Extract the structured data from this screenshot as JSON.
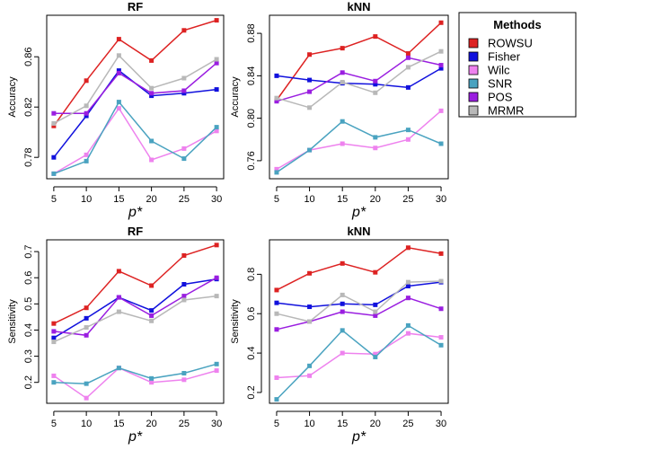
{
  "chart_data": [
    {
      "type": "line",
      "title": "RF",
      "xlabel": "p*",
      "ylabel": "Accuracy",
      "x": [
        5,
        10,
        15,
        20,
        25,
        30
      ],
      "ylim": [
        0.763,
        0.893
      ],
      "yticks": [
        0.78,
        0.82,
        0.86
      ],
      "series": [
        {
          "name": "ROWSU",
          "values": [
            0.805,
            0.841,
            0.874,
            0.857,
            0.881,
            0.889
          ]
        },
        {
          "name": "Fisher",
          "values": [
            0.78,
            0.813,
            0.849,
            0.829,
            0.831,
            0.834
          ]
        },
        {
          "name": "Wilc",
          "values": [
            0.767,
            0.782,
            0.819,
            0.778,
            0.787,
            0.801
          ]
        },
        {
          "name": "SNR",
          "values": [
            0.767,
            0.777,
            0.824,
            0.793,
            0.779,
            0.804
          ]
        },
        {
          "name": "POS",
          "values": [
            0.815,
            0.815,
            0.847,
            0.831,
            0.833,
            0.855
          ]
        },
        {
          "name": "MRMR",
          "values": [
            0.807,
            0.821,
            0.861,
            0.835,
            0.843,
            0.858
          ]
        }
      ]
    },
    {
      "type": "line",
      "title": "kNN",
      "xlabel": "p*",
      "ylabel": "Accuracy",
      "x": [
        5,
        10,
        15,
        20,
        25,
        30
      ],
      "ylim": [
        0.743,
        0.897
      ],
      "yticks": [
        0.76,
        0.8,
        0.84,
        0.88
      ],
      "series": [
        {
          "name": "ROWSU",
          "values": [
            0.817,
            0.86,
            0.866,
            0.877,
            0.861,
            0.89
          ]
        },
        {
          "name": "Fisher",
          "values": [
            0.84,
            0.836,
            0.833,
            0.832,
            0.829,
            0.847
          ]
        },
        {
          "name": "Wilc",
          "values": [
            0.752,
            0.77,
            0.776,
            0.772,
            0.78,
            0.807
          ]
        },
        {
          "name": "SNR",
          "values": [
            0.749,
            0.77,
            0.797,
            0.782,
            0.789,
            0.776
          ]
        },
        {
          "name": "POS",
          "values": [
            0.816,
            0.825,
            0.843,
            0.835,
            0.857,
            0.85
          ]
        },
        {
          "name": "MRMR",
          "values": [
            0.819,
            0.81,
            0.834,
            0.824,
            0.848,
            0.863
          ]
        }
      ]
    },
    {
      "type": "line",
      "title": "RF",
      "xlabel": "p*",
      "ylabel": "Sensitivity",
      "x": [
        5,
        10,
        15,
        20,
        25,
        30
      ],
      "ylim": [
        0.12,
        0.745
      ],
      "yticks": [
        0.2,
        0.3,
        0.4,
        0.5,
        0.6,
        0.7
      ],
      "series": [
        {
          "name": "ROWSU",
          "values": [
            0.425,
            0.485,
            0.625,
            0.57,
            0.685,
            0.725
          ]
        },
        {
          "name": "Fisher",
          "values": [
            0.37,
            0.445,
            0.525,
            0.475,
            0.575,
            0.595
          ]
        },
        {
          "name": "Wilc",
          "values": [
            0.225,
            0.14,
            0.255,
            0.2,
            0.21,
            0.245
          ]
        },
        {
          "name": "SNR",
          "values": [
            0.2,
            0.195,
            0.255,
            0.215,
            0.235,
            0.27
          ]
        },
        {
          "name": "POS",
          "values": [
            0.395,
            0.38,
            0.525,
            0.455,
            0.53,
            0.6
          ]
        },
        {
          "name": "MRMR",
          "values": [
            0.355,
            0.41,
            0.47,
            0.435,
            0.515,
            0.53
          ]
        }
      ]
    },
    {
      "type": "line",
      "title": "kNN",
      "xlabel": "p*",
      "ylabel": "Sensitivity",
      "x": [
        5,
        10,
        15,
        20,
        25,
        30
      ],
      "ylim": [
        0.145,
        0.975
      ],
      "yticks": [
        0.2,
        0.4,
        0.6,
        0.8
      ],
      "series": [
        {
          "name": "ROWSU",
          "values": [
            0.72,
            0.805,
            0.855,
            0.81,
            0.935,
            0.905
          ]
        },
        {
          "name": "Fisher",
          "values": [
            0.655,
            0.635,
            0.65,
            0.645,
            0.74,
            0.76
          ]
        },
        {
          "name": "Wilc",
          "values": [
            0.275,
            0.285,
            0.4,
            0.395,
            0.5,
            0.48
          ]
        },
        {
          "name": "SNR",
          "values": [
            0.165,
            0.335,
            0.515,
            0.38,
            0.54,
            0.44
          ]
        },
        {
          "name": "POS",
          "values": [
            0.52,
            0.56,
            0.61,
            0.59,
            0.68,
            0.625
          ]
        },
        {
          "name": "MRMR",
          "values": [
            0.6,
            0.56,
            0.695,
            0.61,
            0.76,
            0.765
          ]
        }
      ]
    }
  ],
  "legend": {
    "title": "Methods",
    "items": [
      {
        "name": "ROWSU",
        "color": "#dd2222"
      },
      {
        "name": "Fisher",
        "color": "#1111dd"
      },
      {
        "name": "Wilc",
        "color": "#ee82ee"
      },
      {
        "name": "SNR",
        "color": "#4aa3c0"
      },
      {
        "name": "POS",
        "color": "#9a1ee0"
      },
      {
        "name": "MRMR",
        "color": "#b8b8b8"
      }
    ]
  }
}
